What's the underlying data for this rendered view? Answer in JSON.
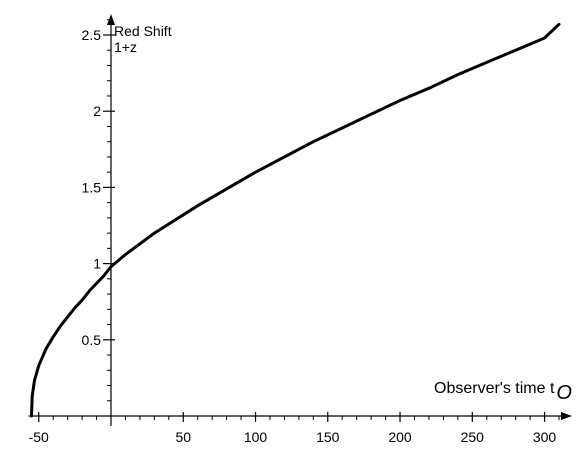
{
  "chart_data": {
    "type": "line",
    "ylabel_line1": "Red Shift",
    "ylabel_line2": "1+z",
    "xlabel_main": "Observer's time t",
    "xlabel_sub": "O",
    "xlim": [
      -57,
      312
    ],
    "ylim": [
      0,
      2.65
    ],
    "x_ticks": [
      {
        "value": -50,
        "label": "-50"
      },
      {
        "value": 50,
        "label": "50"
      },
      {
        "value": 100,
        "label": "100"
      },
      {
        "value": 150,
        "label": "150"
      },
      {
        "value": 200,
        "label": "200"
      },
      {
        "value": 250,
        "label": "250"
      },
      {
        "value": 300,
        "label": "300"
      }
    ],
    "y_ticks": [
      {
        "value": 0.5,
        "label": "0.5"
      },
      {
        "value": 1,
        "label": "1"
      },
      {
        "value": 1.5,
        "label": "1.5"
      },
      {
        "value": 2,
        "label": "2"
      },
      {
        "value": 2.5,
        "label": "2.5"
      }
    ],
    "x_minor_step": 10,
    "y_minor_step": 0.1,
    "grid": false,
    "series": [
      {
        "x": [
          -55,
          -54.5,
          -53,
          -50,
          -45,
          -40,
          -35,
          -30,
          -25,
          -20,
          -15,
          -10,
          -5,
          0,
          10,
          20,
          30,
          40,
          50,
          60,
          80,
          100,
          120,
          140,
          160,
          180,
          200,
          220,
          240,
          260,
          280,
          300,
          310
        ],
        "y": [
          0.0,
          0.13,
          0.23,
          0.33,
          0.44,
          0.52,
          0.59,
          0.65,
          0.71,
          0.76,
          0.82,
          0.87,
          0.92,
          0.98,
          1.06,
          1.13,
          1.2,
          1.26,
          1.32,
          1.38,
          1.49,
          1.6,
          1.7,
          1.8,
          1.89,
          1.98,
          2.07,
          2.15,
          2.24,
          2.32,
          2.4,
          2.48,
          2.57
        ],
        "color": "#000000"
      }
    ]
  }
}
